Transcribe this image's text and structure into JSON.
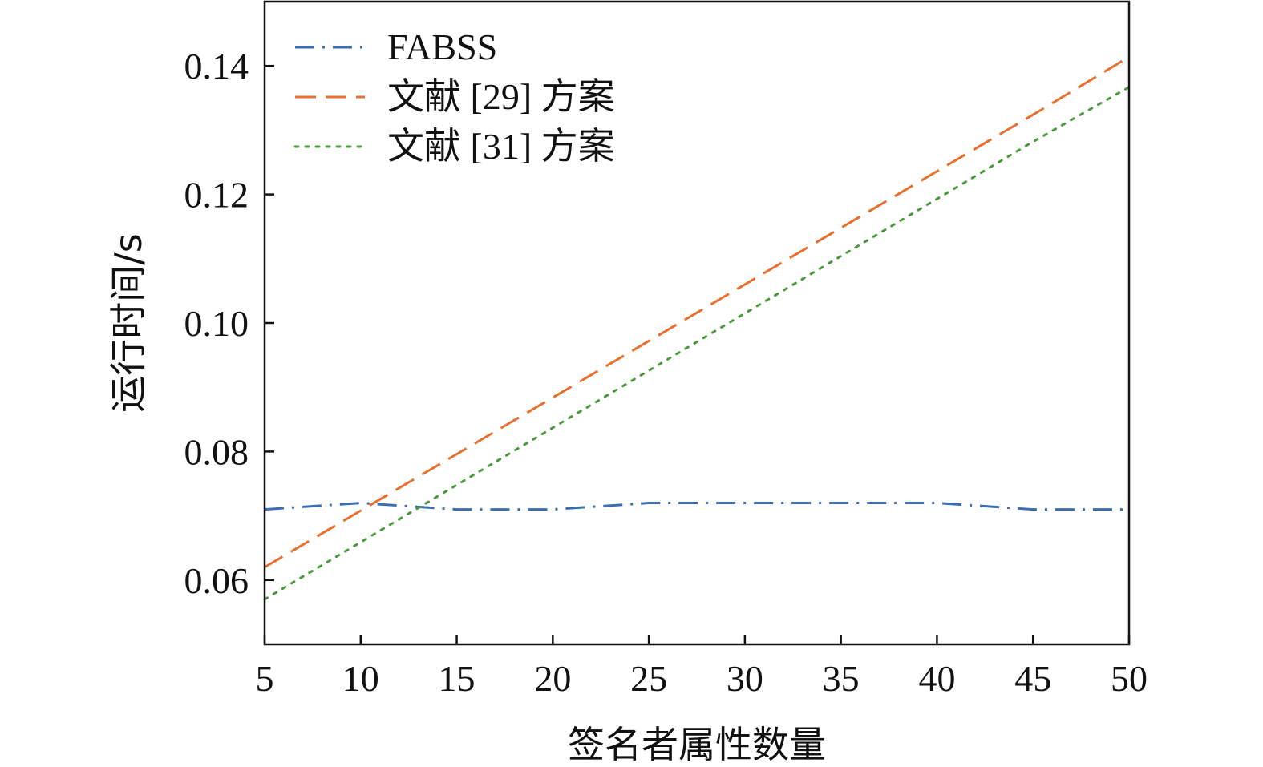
{
  "chart_data": {
    "type": "line",
    "xlabel": "签名者属性数量",
    "ylabel": "运行时间/s",
    "xlim": [
      5,
      50
    ],
    "ylim": [
      0.05,
      0.15
    ],
    "xticks": [
      5,
      10,
      15,
      20,
      25,
      30,
      35,
      40,
      45,
      50
    ],
    "yticks": [
      0.06,
      0.08,
      0.1,
      0.12,
      0.14
    ],
    "ytick_labels": [
      "0.06",
      "0.08",
      "0.10",
      "0.12",
      "0.14"
    ],
    "grid": false,
    "legend_position": "top-left",
    "x": [
      5,
      10,
      15,
      20,
      25,
      30,
      35,
      40,
      45,
      50
    ],
    "series": [
      {
        "name": "FABSS",
        "color": "#3b6db3",
        "dash": "dash-dot",
        "values": [
          0.071,
          0.072,
          0.071,
          0.071,
          0.072,
          0.072,
          0.072,
          0.072,
          0.071,
          0.071
        ]
      },
      {
        "name": "文献 [29] 方案",
        "color": "#e8702f",
        "dash": "dashed",
        "values": [
          0.062,
          0.0708,
          0.0796,
          0.0884,
          0.0972,
          0.106,
          0.1148,
          0.1236,
          0.1324,
          0.1414
        ]
      },
      {
        "name": "文献 [31] 方案",
        "color": "#4a9a3c",
        "dash": "dotted",
        "values": [
          0.057,
          0.0659,
          0.0748,
          0.0837,
          0.0926,
          0.1015,
          0.1104,
          0.1193,
          0.1282,
          0.1367
        ]
      }
    ]
  }
}
